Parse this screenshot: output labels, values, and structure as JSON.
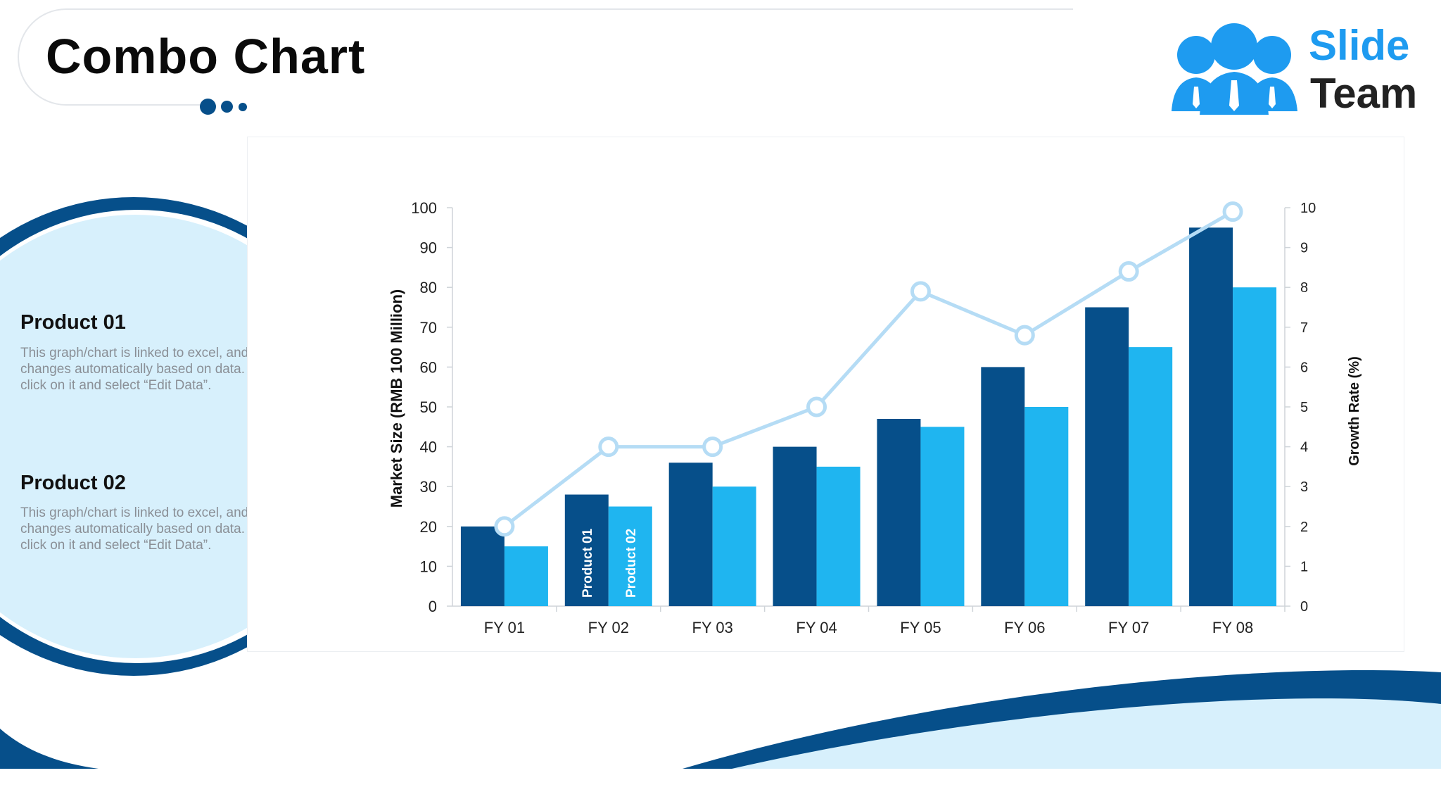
{
  "page": {
    "title": "Combo Chart"
  },
  "logo": {
    "line1": "Slide",
    "line2": "Team"
  },
  "colors": {
    "product01": "#064f8a",
    "product02": "#1fb5f0",
    "growth_line": "#b5dcf5",
    "accent_dark": "#064f8a",
    "accent_light": "#d7f0fc",
    "logo_blue": "#1e9bf0"
  },
  "products": [
    {
      "name": "Product 01",
      "desc": "This graph/chart is linked to excel, and changes automatically based on data. Just left click on it and select “Edit Data”."
    },
    {
      "name": "Product 02",
      "desc": "This graph/chart is linked to excel, and changes automatically based on data. Just left click on it and select “Edit Data”."
    }
  ],
  "chart_data": {
    "type": "bar",
    "combo": "bar+line",
    "categories": [
      "FY 01",
      "FY 02",
      "FY 03",
      "FY 04",
      "FY 05",
      "FY 06",
      "FY 07",
      "FY 08"
    ],
    "series": [
      {
        "name": "Product 01",
        "type": "bar",
        "axis": "left",
        "values": [
          20,
          28,
          36,
          40,
          47,
          60,
          75,
          95
        ]
      },
      {
        "name": "Product 02",
        "type": "bar",
        "axis": "left",
        "values": [
          15,
          25,
          30,
          35,
          45,
          50,
          65,
          80
        ]
      },
      {
        "type": "line",
        "axis": "right",
        "values": [
          2,
          4,
          4,
          5,
          7.9,
          6.8,
          8.4,
          9.9
        ]
      }
    ],
    "ylabel": "Market Size (RMB 100 Million)",
    "y2label": "Growth Rate (%)",
    "ylim": [
      0,
      100
    ],
    "y2lim": [
      0,
      10
    ],
    "yticks": [
      "0",
      "10",
      "20",
      "30",
      "40",
      "50",
      "60",
      "70",
      "80",
      "90",
      "100"
    ],
    "y2ticks": [
      "0",
      "1",
      "2",
      "3",
      "4",
      "5",
      "6",
      "7",
      "8",
      "9",
      "10"
    ],
    "bar_labels": {
      "category_index": 1,
      "labels": [
        "Product 01",
        "Product 02"
      ]
    },
    "grid": false,
    "legend": "none"
  }
}
